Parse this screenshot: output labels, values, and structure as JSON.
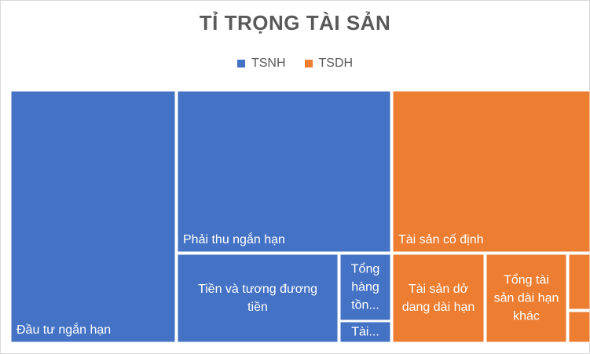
{
  "chart_data": {
    "type": "treemap",
    "title": "TỈ TRỌNG TÀI SẢN",
    "legend": {
      "placement": "top",
      "entries": [
        {
          "name": "TSNH",
          "color": "#4472c4"
        },
        {
          "name": "TSDH",
          "color": "#ed7d31"
        }
      ]
    },
    "groups": [
      {
        "name": "TSNH",
        "color": "#4472c4",
        "items": [
          {
            "label": "Đầu tư ngắn hạn",
            "value": 21.6
          },
          {
            "label": "Phải thu ngắn hạn",
            "value": 20.0
          },
          {
            "label": "Tiền và tương đương tiền",
            "value": 6.5
          },
          {
            "label": "Tổng hàng tồn...",
            "value": 2.8
          },
          {
            "label": "Tài...",
            "value": 0.9
          }
        ]
      },
      {
        "name": "TSDH",
        "color": "#ed7d31",
        "items": [
          {
            "label": "Tài sản cố định",
            "value": 16.8
          },
          {
            "label": "Tài sản dở dang dài hạn",
            "value": 3.5
          },
          {
            "label": "Tổng tài sản dài hạn khác",
            "value": 3.0
          },
          {
            "label": "",
            "value": 0.5
          },
          {
            "label": "",
            "value": 0.3
          }
        ]
      }
    ]
  }
}
